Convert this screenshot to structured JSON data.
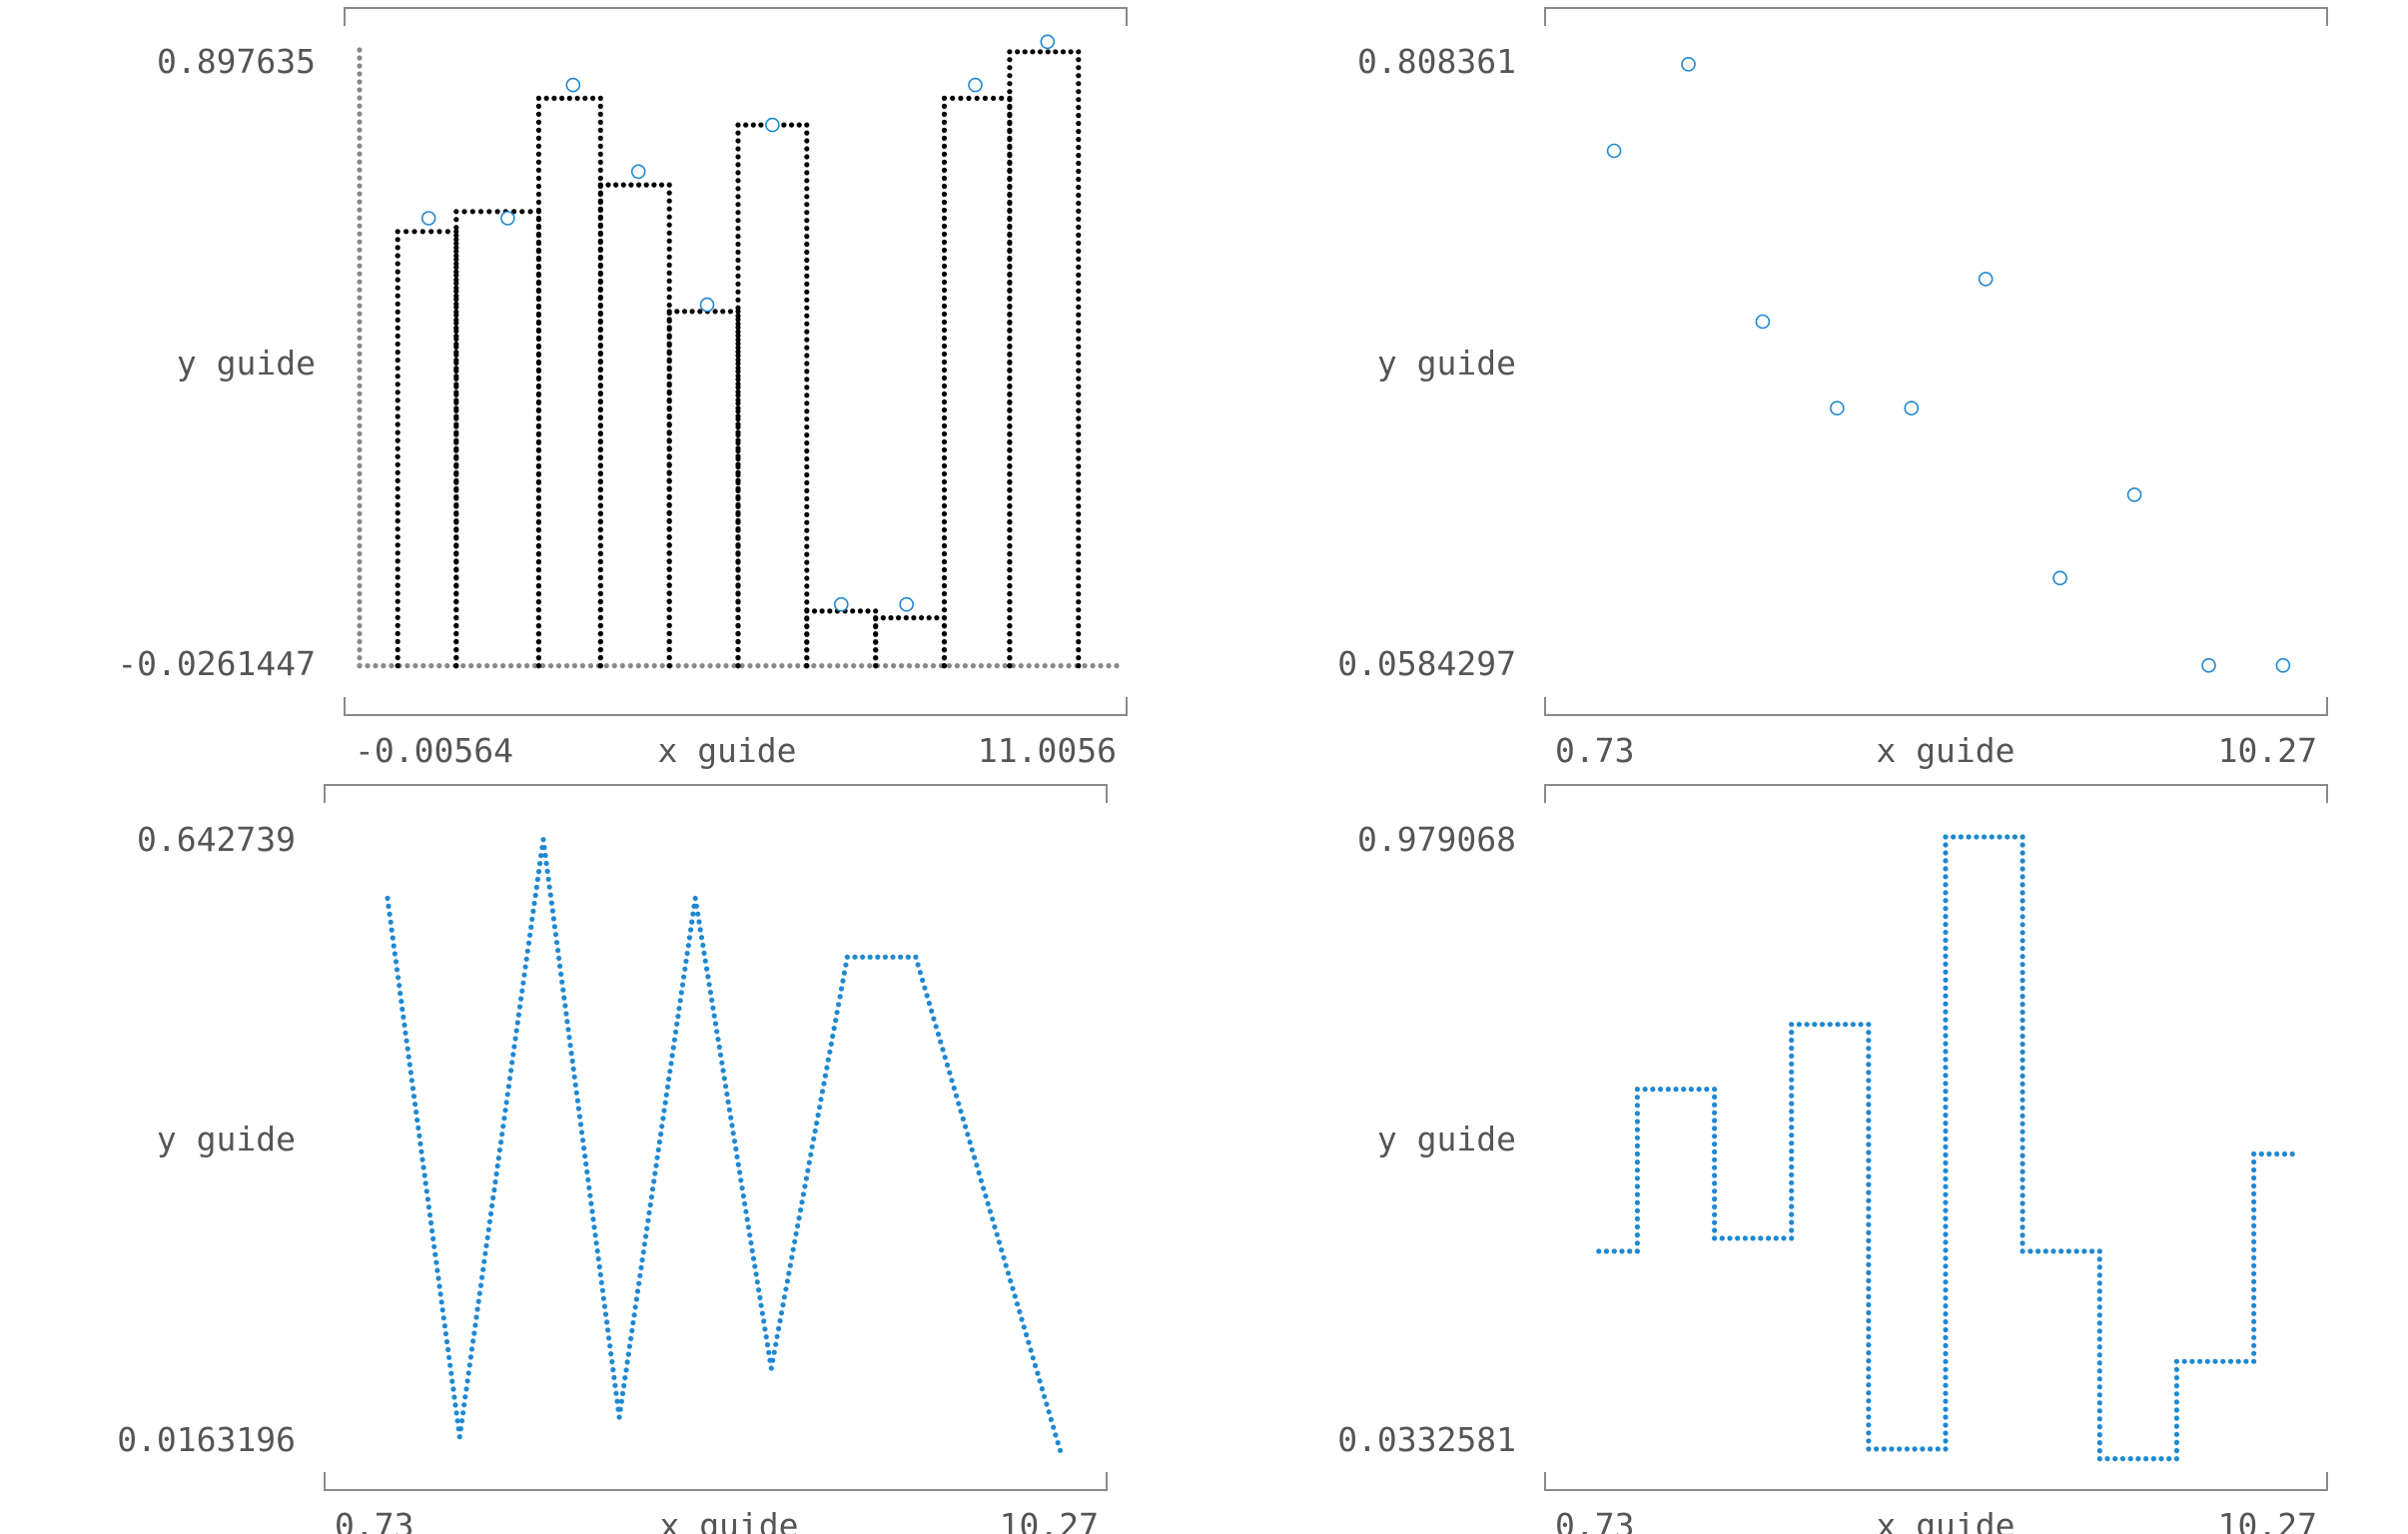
{
  "chart_data": [
    {
      "type": "bar",
      "variant": "step-histogram",
      "xlabel": "x guide",
      "ylabel": "y guide",
      "x_tick_labels": [
        "-0.00564",
        "11.0056"
      ],
      "y_tick_labels": [
        "0.897635",
        "-0.0261447"
      ],
      "xlim": [
        -0.00564,
        11.0056
      ],
      "ylim": [
        -0.0261447,
        0.897635
      ],
      "bar_color": "#000000",
      "axis_color": "#888888",
      "marker_color": "#1f88d1",
      "bins": [
        {
          "x0": 0.55,
          "x1": 1.4,
          "y": 0.64
        },
        {
          "x0": 1.4,
          "x1": 2.6,
          "y": 0.67
        },
        {
          "x0": 2.6,
          "x1": 3.5,
          "y": 0.84
        },
        {
          "x0": 3.5,
          "x1": 4.5,
          "y": 0.71
        },
        {
          "x0": 4.5,
          "x1": 5.5,
          "y": 0.52
        },
        {
          "x0": 5.5,
          "x1": 6.5,
          "y": 0.8
        },
        {
          "x0": 6.5,
          "x1": 7.5,
          "y": 0.07
        },
        {
          "x0": 7.5,
          "x1": 8.5,
          "y": 0.06
        },
        {
          "x0": 8.5,
          "x1": 9.45,
          "y": 0.84
        },
        {
          "x0": 9.45,
          "x1": 10.45,
          "y": 0.91
        }
      ],
      "points": [
        {
          "x": 1.0,
          "y": 0.66
        },
        {
          "x": 2.15,
          "y": 0.66
        },
        {
          "x": 3.1,
          "y": 0.86
        },
        {
          "x": 4.05,
          "y": 0.73
        },
        {
          "x": 5.05,
          "y": 0.53
        },
        {
          "x": 6.0,
          "y": 0.8
        },
        {
          "x": 7.0,
          "y": 0.08
        },
        {
          "x": 7.95,
          "y": 0.08
        },
        {
          "x": 8.95,
          "y": 0.86
        },
        {
          "x": 10.0,
          "y": 0.925
        }
      ]
    },
    {
      "type": "scatter",
      "xlabel": "x guide",
      "ylabel": "y guide",
      "x_tick_labels": [
        "0.73",
        "10.27"
      ],
      "y_tick_labels": [
        "0.808361",
        "0.0584297"
      ],
      "xlim": [
        0.73,
        10.27
      ],
      "ylim": [
        0.0584297,
        0.808361
      ],
      "axis_color": "#888888",
      "marker_color": "#1f88d1",
      "points": [
        {
          "x": 1.0,
          "y": 0.7
        },
        {
          "x": 2.0,
          "y": 0.808
        },
        {
          "x": 3.0,
          "y": 0.487
        },
        {
          "x": 4.0,
          "y": 0.379
        },
        {
          "x": 5.0,
          "y": 0.379
        },
        {
          "x": 6.0,
          "y": 0.54
        },
        {
          "x": 7.0,
          "y": 0.167
        },
        {
          "x": 8.0,
          "y": 0.271
        },
        {
          "x": 9.0,
          "y": 0.058
        },
        {
          "x": 10.0,
          "y": 0.058
        }
      ]
    },
    {
      "type": "line",
      "variant": "dotted",
      "xlabel": "x guide",
      "ylabel": "y guide",
      "x_tick_labels": [
        "0.73",
        "10.27"
      ],
      "y_tick_labels": [
        "0.642739",
        "0.0163196"
      ],
      "xlim": [
        0.73,
        10.27
      ],
      "ylim": [
        0.0163196,
        0.642739
      ],
      "axis_color": "#888888",
      "line_color": "#1f88d1",
      "points": [
        {
          "x": 1.15,
          "y": 0.58
        },
        {
          "x": 2.1,
          "y": 0.03
        },
        {
          "x": 3.2,
          "y": 0.64
        },
        {
          "x": 4.2,
          "y": 0.05
        },
        {
          "x": 5.2,
          "y": 0.58
        },
        {
          "x": 6.2,
          "y": 0.1
        },
        {
          "x": 7.2,
          "y": 0.52
        },
        {
          "x": 8.1,
          "y": 0.52
        },
        {
          "x": 10.0,
          "y": 0.016
        }
      ]
    },
    {
      "type": "line",
      "variant": "step",
      "xlabel": "x guide",
      "ylabel": "y guide",
      "x_tick_labels": [
        "0.73",
        "10.27"
      ],
      "y_tick_labels": [
        "0.979068",
        "0.0332581"
      ],
      "xlim": [
        0.73,
        10.27
      ],
      "ylim": [
        0.0332581,
        0.979068
      ],
      "axis_color": "#888888",
      "line_color": "#1f88d1",
      "steps": [
        {
          "x0": 1.0,
          "x1": 1.5,
          "y": 0.34
        },
        {
          "x0": 1.5,
          "x1": 2.5,
          "y": 0.59
        },
        {
          "x0": 2.5,
          "x1": 3.5,
          "y": 0.36
        },
        {
          "x0": 3.5,
          "x1": 4.5,
          "y": 0.69
        },
        {
          "x0": 4.5,
          "x1": 5.5,
          "y": 0.035
        },
        {
          "x0": 5.5,
          "x1": 6.5,
          "y": 0.979
        },
        {
          "x0": 6.5,
          "x1": 7.5,
          "y": 0.34
        },
        {
          "x0": 7.5,
          "x1": 8.5,
          "y": 0.02
        },
        {
          "x0": 8.5,
          "x1": 9.5,
          "y": 0.17
        },
        {
          "x0": 9.5,
          "x1": 10.0,
          "y": 0.49
        }
      ]
    }
  ]
}
